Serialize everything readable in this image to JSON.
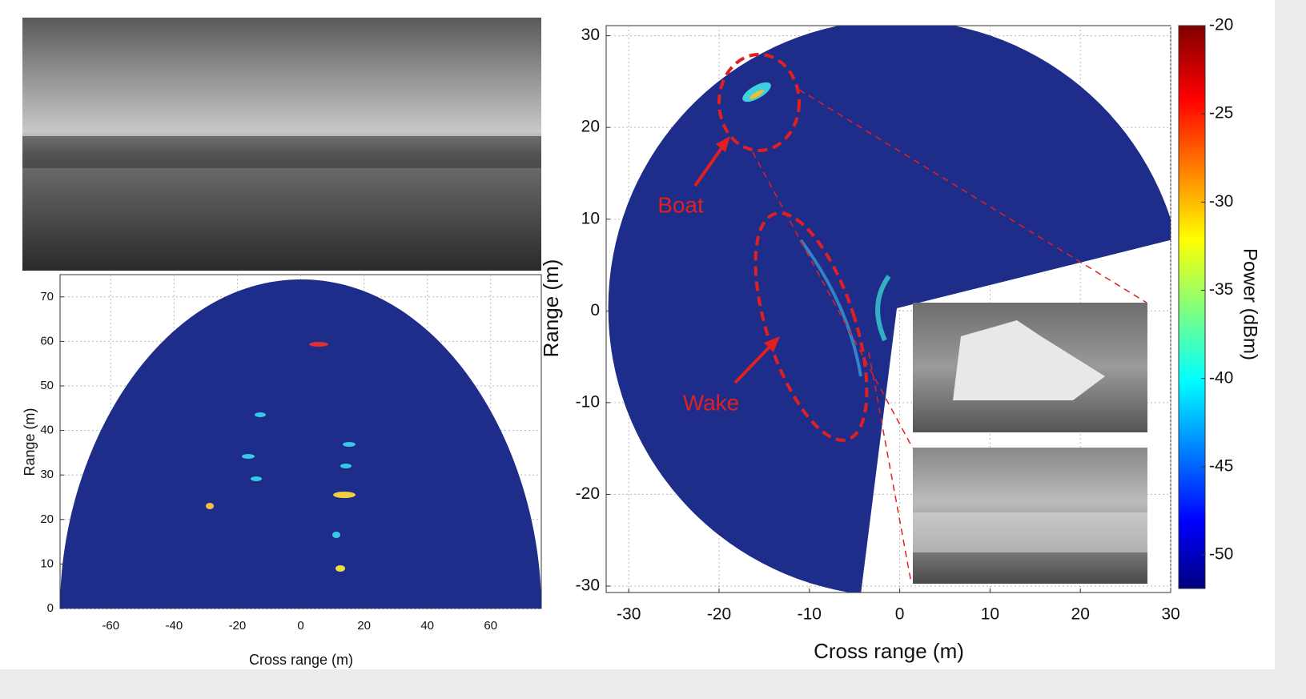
{
  "left_plot": {
    "xlabel": "Cross range (m)",
    "ylabel": "Range (m)",
    "xlim": [
      -76,
      76
    ],
    "ylim": [
      0,
      75
    ],
    "xticks": [
      -60,
      -40,
      -20,
      0,
      20,
      40,
      60
    ],
    "yticks": [
      0,
      10,
      20,
      30,
      40,
      50,
      60,
      70
    ]
  },
  "right_plot": {
    "xlabel": "Cross range (m)",
    "ylabel": "Range (m)",
    "xlim": [
      -32.5,
      30
    ],
    "ylim": [
      -30.7,
      31.1
    ],
    "xticks": [
      -30,
      -20,
      -10,
      0,
      10,
      20,
      30
    ],
    "yticks": [
      -30,
      -20,
      -10,
      0,
      10,
      20,
      30
    ],
    "annotations": [
      "Boat",
      "Wake"
    ]
  },
  "colorbar": {
    "label": "Power (dBm)",
    "lim": [
      -51.9,
      -20
    ],
    "ticks": [
      -20,
      -25,
      -30,
      -35,
      -40,
      -45,
      -50
    ]
  }
}
